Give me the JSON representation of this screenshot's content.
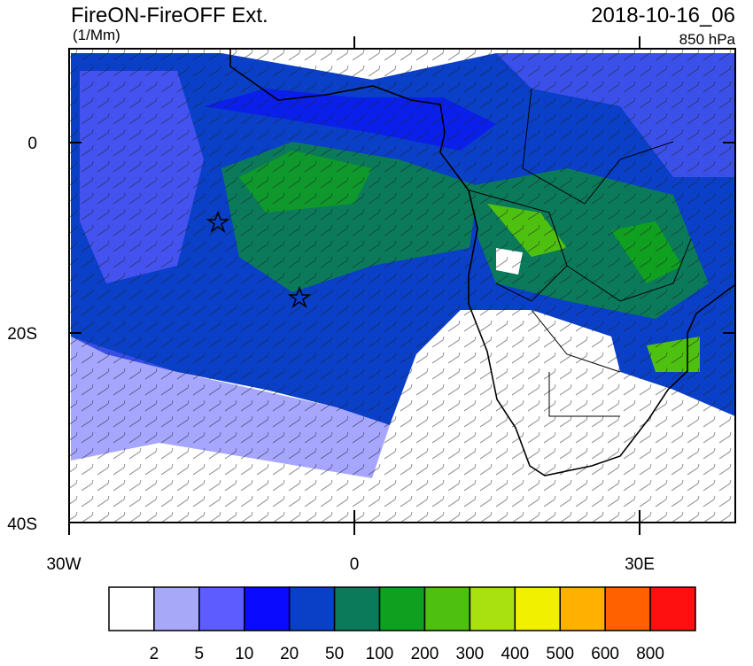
{
  "header": {
    "title": "FireON-FireOFF Ext.",
    "units": "(1/Mm)",
    "time": "2018-10-16_06",
    "level": "850 hPa"
  },
  "axes": {
    "y_labels": [
      "0",
      "20S",
      "40S"
    ],
    "x_labels": [
      "30W",
      "0",
      "30E"
    ]
  },
  "colorbar": {
    "levels": [
      2,
      5,
      10,
      20,
      50,
      100,
      200,
      300,
      400,
      500,
      600,
      800
    ],
    "colors": [
      "#ffffff",
      "#a8a8f8",
      "#5c5cff",
      "#0a0aff",
      "#0a3fc8",
      "#0b7a5a",
      "#10a020",
      "#4ec010",
      "#a8e010",
      "#f0f000",
      "#ffb000",
      "#ff6000",
      "#ff1010"
    ]
  }
}
